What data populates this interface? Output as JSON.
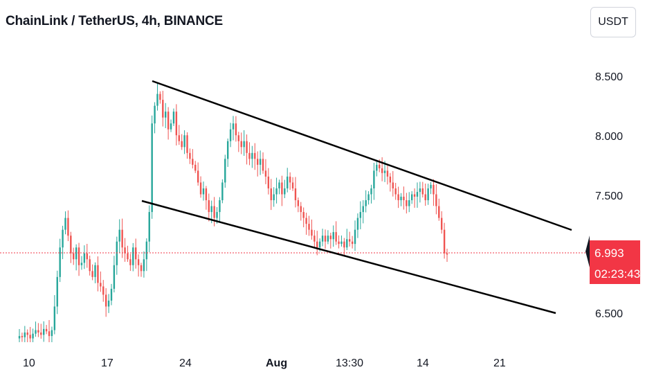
{
  "header": {
    "title": "ChainLink / TetherUS, 4h, BINANCE",
    "currency": "USDT"
  },
  "colors": {
    "up": "#26a69a",
    "down": "#ef5350",
    "price_tag": "#f23645",
    "trendline": "#000000",
    "price_line": "#f23645"
  },
  "chart_data": {
    "type": "candlestick",
    "symbol": "ChainLink / TetherUS",
    "interval": "4h",
    "exchange": "BINANCE",
    "y_ticks": [
      {
        "label": "8.500",
        "value": 8.5
      },
      {
        "label": "8.000",
        "value": 8.0
      },
      {
        "label": "7.500",
        "value": 7.5
      },
      {
        "label": "6.500",
        "value": 6.5
      }
    ],
    "x_ticks": [
      {
        "label": "10",
        "bold": false
      },
      {
        "label": "17",
        "bold": false
      },
      {
        "label": "24",
        "bold": false
      },
      {
        "label": "Aug",
        "bold": true
      },
      {
        "label": "13:30",
        "bold": false
      },
      {
        "label": "14",
        "bold": false
      },
      {
        "label": "21",
        "bold": false
      }
    ],
    "ylim": [
      6.2,
      8.8
    ],
    "grid": false,
    "last_price": {
      "value": 6.993,
      "label": "6.993",
      "countdown": "02:23:43"
    },
    "trendlines": [
      {
        "name": "upper",
        "from": {
          "date": "Jul 20",
          "price": 8.46
        },
        "to": {
          "date": "Aug 25",
          "price": 7.17
        }
      },
      {
        "name": "lower",
        "from": {
          "date": "Jul 20",
          "price": 7.43
        },
        "to": {
          "date": "Aug 24",
          "price": 6.49
        }
      }
    ],
    "candles_close_path": [
      6.3,
      6.29,
      6.33,
      6.31,
      6.28,
      6.32,
      6.35,
      6.33,
      6.31,
      6.36,
      6.34,
      6.3,
      6.35,
      6.55,
      6.8,
      7.05,
      7.2,
      7.3,
      7.15,
      7.0,
      6.95,
      7.05,
      6.9,
      6.92,
      7.0,
      6.95,
      6.85,
      6.8,
      6.9,
      6.75,
      6.72,
      6.65,
      6.55,
      6.6,
      6.7,
      6.9,
      7.1,
      7.2,
      7.05,
      7.0,
      6.95,
      6.9,
      7.05,
      6.95,
      6.9,
      6.85,
      6.95,
      7.1,
      7.35,
      8.1,
      8.25,
      8.35,
      8.3,
      8.15,
      8.2,
      8.05,
      8.1,
      8.2,
      8.0,
      7.95,
      7.9,
      8.0,
      7.85,
      7.8,
      7.75,
      7.7,
      7.6,
      7.5,
      7.55,
      7.45,
      7.35,
      7.4,
      7.3,
      7.35,
      7.45,
      7.6,
      7.8,
      7.95,
      8.05,
      8.1,
      8.0,
      7.95,
      7.9,
      7.95,
      7.85,
      7.8,
      7.85,
      7.8,
      7.75,
      7.8,
      7.7,
      7.65,
      7.55,
      7.45,
      7.5,
      7.55,
      7.6,
      7.5,
      7.55,
      7.65,
      7.6,
      7.55,
      7.45,
      7.4,
      7.35,
      7.3,
      7.25,
      7.2,
      7.15,
      7.1,
      7.05,
      7.1,
      7.15,
      7.1,
      7.15,
      7.12,
      7.18,
      7.1,
      7.08,
      7.1,
      7.05,
      7.12,
      7.1,
      7.08,
      7.2,
      7.3,
      7.35,
      7.4,
      7.45,
      7.5,
      7.55,
      7.7,
      7.75,
      7.72,
      7.68,
      7.7,
      7.65,
      7.6,
      7.55,
      7.5,
      7.45,
      7.48,
      7.45,
      7.4,
      7.45,
      7.5,
      7.48,
      7.52,
      7.55,
      7.5,
      7.45,
      7.55,
      7.58,
      7.5,
      7.4,
      7.3,
      7.2,
      7.0,
      6.99
    ]
  }
}
